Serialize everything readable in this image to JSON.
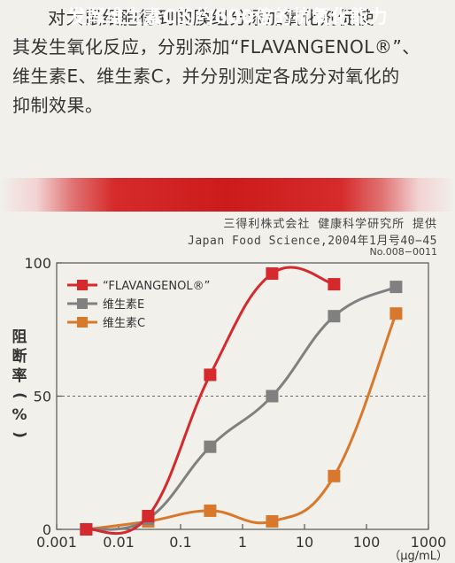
{
  "intro": {
    "line1": "对大鼠细胞得到的膜组分添加氧化剂促使",
    "line2": "其发生氧化反应，分别添加“FLAVANGENOL®”、",
    "line3": "维生素E、维生素C，并分别测定各成分对氧化的",
    "line4": "抑制效果。"
  },
  "banner_title": "发挥维生素C的约600倍的抗氧化能力",
  "source": {
    "line1": "三得利株式会社 健康科学研究所 提供",
    "line2": "Japan Food Science,2004年1月号40−45",
    "line3": "No.008−0011"
  },
  "y_axis_label_chars": [
    "阻",
    "断",
    "率",
    "(",
    "%",
    ")"
  ],
  "colors": {
    "flavangenol": "#d42a2e",
    "vitE": "#808080",
    "vitC": "#d8782d",
    "axis": "#555555",
    "grid": "#666666",
    "bg": "#f1f0ea"
  },
  "chart_data": {
    "type": "line",
    "x_scale": "log",
    "xlim": [
      0.001,
      1000
    ],
    "ylim": [
      0,
      100
    ],
    "x_ticks": [
      "0.001",
      "0.01",
      "0.1",
      "1",
      "10",
      "100",
      "1000"
    ],
    "y_ticks": [
      "0",
      "50",
      "100"
    ],
    "xunit": "（μg/mL）",
    "ylabel": "阻断率（%）",
    "legend_position": "top-left",
    "series": [
      {
        "name": "“FLAVANGENOL®”",
        "x": [
          0.003,
          0.03,
          0.3,
          3,
          30
        ],
        "y": [
          0,
          5,
          58,
          96,
          92
        ]
      },
      {
        "name": "维生素E",
        "x": [
          0.003,
          0.03,
          0.3,
          3,
          30,
          300
        ],
        "y": [
          0,
          4,
          31,
          50,
          80,
          91
        ]
      },
      {
        "name": "维生素C",
        "x": [
          0.003,
          0.03,
          0.3,
          3,
          30,
          300
        ],
        "y": [
          0,
          3,
          7,
          3,
          20,
          81
        ]
      }
    ]
  }
}
